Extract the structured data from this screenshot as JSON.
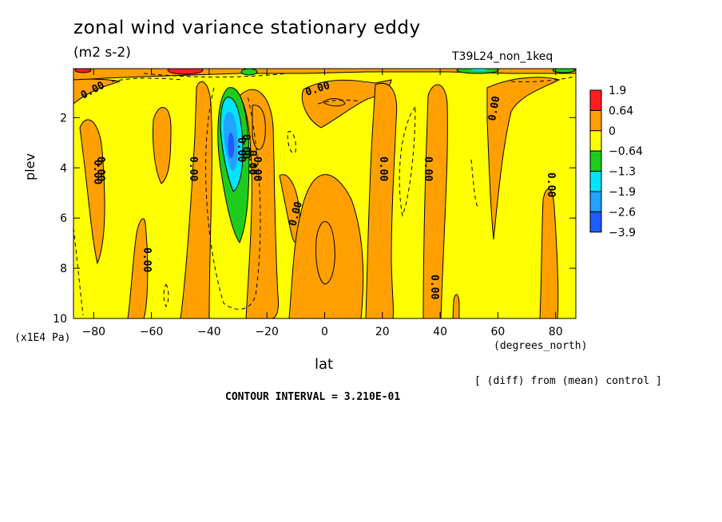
{
  "chart_data": {
    "type": "contour",
    "title": "zonal wind variance stationary eddy",
    "units": "(m2 s-2)",
    "run_label": "T39L24_non_1keq",
    "xlabel": "lat",
    "x_units": "(degrees_north)",
    "ylabel": "plev",
    "y_units": "(x1E4 Pa)",
    "xlim": [
      -87,
      87
    ],
    "ylim": [
      10,
      0.05
    ],
    "x_ticks": [
      "-80",
      "-60",
      "-40",
      "-20",
      "0",
      "20",
      "40",
      "60",
      "80"
    ],
    "y_ticks": [
      "2",
      "4",
      "6",
      "8",
      "10"
    ],
    "contour_interval": "CONTOUR INTERVAL = 3.210E-01",
    "note": "[ (diff) from (mean) control ]",
    "zero_contour_labels": [
      "0.00",
      "0.00",
      "0.00",
      "0.00",
      "0.00",
      "0.00",
      "0.00",
      "0.00",
      "0.00",
      "0.00",
      "0.00",
      "0.00",
      "0.00",
      "0.00",
      "0.00",
      "0.00"
    ],
    "colorbar": {
      "levels": [
        "1.9",
        "0.64",
        "0",
        "-0.64",
        "-1.3",
        "-1.9",
        "-2.6",
        "-3.9"
      ],
      "colors": [
        "#ff1e1e",
        "#ffa000",
        "#ffff00",
        "#1ecc1e",
        "#00e5ff",
        "#22a3ff",
        "#1e5cff"
      ]
    },
    "features": [
      {
        "name": "negative-core",
        "lat": -34,
        "plev": [
          1,
          7
        ],
        "min": -3.9
      },
      {
        "name": "positive-band",
        "lat": 0,
        "plev": [
          4,
          10
        ],
        "max": 0.64
      },
      {
        "name": "surface-positive-max",
        "lat": -50,
        "plev": [
          0.1,
          0.3
        ],
        "max": 1.9
      }
    ]
  }
}
